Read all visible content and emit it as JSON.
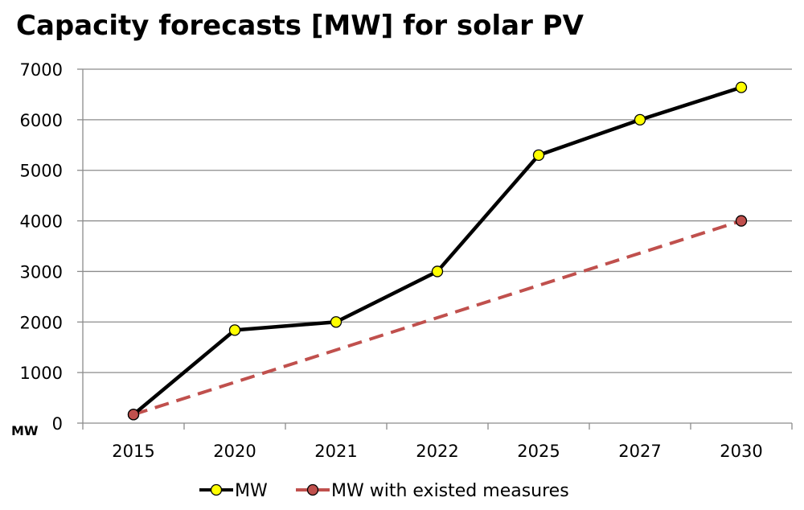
{
  "chart_data": {
    "type": "line",
    "title": "Capacity forecasts [MW] for solar PV",
    "unit_label": "MW",
    "categories": [
      "2015",
      "2020",
      "2021",
      "2022",
      "2025",
      "2027",
      "2030"
    ],
    "ylim": [
      0,
      7000
    ],
    "yticks": [
      "0",
      "1000",
      "2000",
      "3000",
      "4000",
      "5000",
      "6000",
      "7000"
    ],
    "grid": true,
    "legend_position": "bottom",
    "series": [
      {
        "name": "MW",
        "line_color": "#000000",
        "marker_color": "#ffff00",
        "dashed": false,
        "points": [
          {
            "x": "2015",
            "y": 170
          },
          {
            "x": "2020",
            "y": 1840
          },
          {
            "x": "2021",
            "y": 2000
          },
          {
            "x": "2022",
            "y": 3000
          },
          {
            "x": "2025",
            "y": 5300
          },
          {
            "x": "2027",
            "y": 6000
          },
          {
            "x": "2030",
            "y": 6640
          }
        ]
      },
      {
        "name": "MW with existed measures",
        "line_color": "#c0504d",
        "marker_color": "#c0504d",
        "dashed": true,
        "points": [
          {
            "x": "2015",
            "y": 170
          },
          {
            "x": "2030",
            "y": 4000
          }
        ]
      }
    ]
  }
}
